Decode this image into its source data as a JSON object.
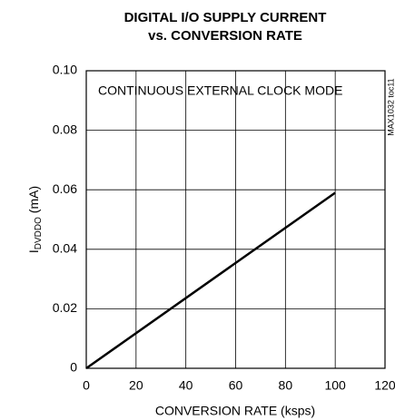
{
  "chart_data": {
    "type": "line",
    "title": [
      "DIGITAL I/O SUPPLY CURRENT",
      "vs. CONVERSION RATE"
    ],
    "annotation": "CONTINUOUS EXTERNAL CLOCK MODE",
    "side_label": "MAX1032 toc11",
    "xlabel": "CONVERSION RATE (ksps)",
    "ylabel": {
      "main": "I",
      "sub": "DVDDO",
      "unit": " (mA)"
    },
    "x": [
      0,
      100
    ],
    "series": [
      {
        "name": "IDVDDO",
        "color": "#000000",
        "values": [
          0,
          0.059
        ]
      }
    ],
    "xlim": [
      0,
      120
    ],
    "xticks": [
      0,
      20,
      40,
      60,
      80,
      100,
      120
    ],
    "ylim": [
      0,
      0.1
    ],
    "yticks": [
      0,
      0.02,
      0.04,
      0.06,
      0.08,
      {
        "value": 0.1,
        "label": "0.10"
      }
    ],
    "grid": true
  }
}
